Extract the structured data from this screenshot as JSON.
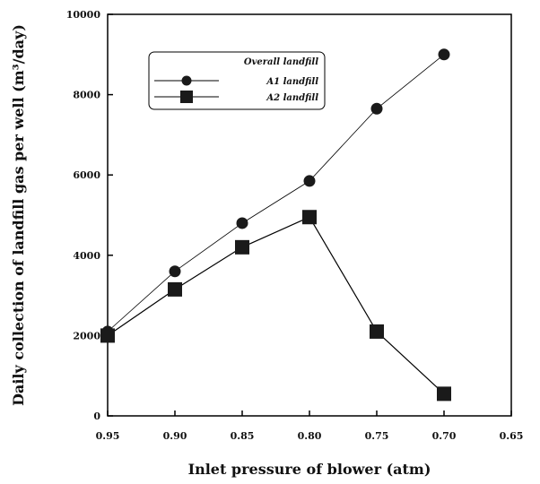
{
  "chart_data": {
    "type": "line",
    "x": [
      0.95,
      0.9,
      0.85,
      0.8,
      0.75,
      0.7
    ],
    "xlabel": "Inlet pressure of blower (atm)",
    "ylabel": "Daily collection of landfill gas per well (m³/day)",
    "xlim": [
      0.95,
      0.65
    ],
    "ylim": [
      0,
      10000
    ],
    "x_ticks": [
      "0.95",
      "0.90",
      "0.85",
      "0.80",
      "0.75",
      "0.70",
      "0.65"
    ],
    "y_ticks": [
      "0",
      "2000",
      "4000",
      "6000",
      "8000",
      "10000"
    ],
    "x_reversed": true,
    "grid": false,
    "legend_position": "top-left",
    "legend_title": "Overall landfill",
    "series": [
      {
        "name": "A1 landfill",
        "marker": "circle",
        "values": [
          2100,
          3600,
          4800,
          5850,
          7650,
          9000
        ]
      },
      {
        "name": "A2 landfill",
        "marker": "square",
        "values": [
          2000,
          3150,
          4200,
          4950,
          2100,
          550
        ]
      }
    ],
    "colors": {
      "line": "#000000",
      "marker": "#1a1a1a",
      "background": "#ffffff"
    }
  }
}
